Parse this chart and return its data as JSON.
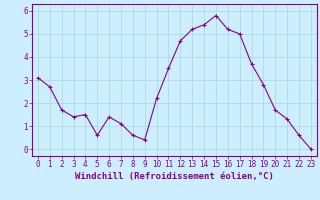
{
  "x": [
    0,
    1,
    2,
    3,
    4,
    5,
    6,
    7,
    8,
    9,
    10,
    11,
    12,
    13,
    14,
    15,
    16,
    17,
    18,
    19,
    20,
    21,
    22,
    23
  ],
  "y": [
    3.1,
    2.7,
    1.7,
    1.4,
    1.5,
    0.6,
    1.4,
    1.1,
    0.6,
    0.4,
    2.2,
    3.5,
    4.7,
    5.2,
    5.4,
    5.8,
    5.2,
    5.0,
    3.7,
    2.8,
    1.7,
    1.3,
    0.6,
    0.0
  ],
  "line_color": "#880088",
  "marker": "+",
  "background_color": "#cceeff",
  "grid_color": "#aadddd",
  "xlabel": "Windchill (Refroidissement éolien,°C)",
  "xlabel_color": "#880088",
  "tick_color": "#880088",
  "spine_color": "#880088",
  "ylim": [
    -0.3,
    6.3
  ],
  "xlim": [
    -0.5,
    23.5
  ],
  "yticks": [
    0,
    1,
    2,
    3,
    4,
    5,
    6
  ],
  "xticks": [
    0,
    1,
    2,
    3,
    4,
    5,
    6,
    7,
    8,
    9,
    10,
    11,
    12,
    13,
    14,
    15,
    16,
    17,
    18,
    19,
    20,
    21,
    22,
    23
  ],
  "xlabel_fontsize": 6.5,
  "tick_fontsize": 5.5,
  "linewidth": 0.8,
  "markersize": 3,
  "fig_width": 3.2,
  "fig_height": 2.0,
  "dpi": 100
}
